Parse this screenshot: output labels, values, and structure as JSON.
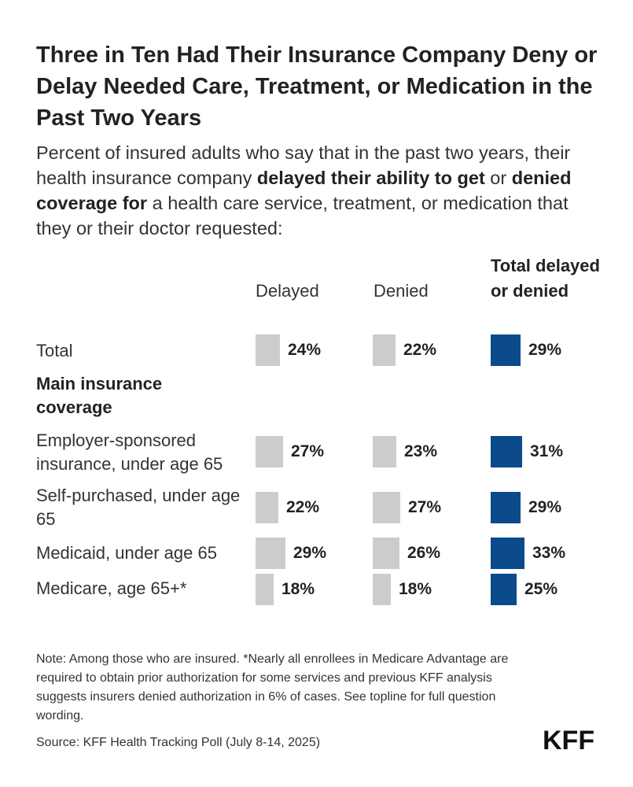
{
  "title": "Three in Ten Had Their Insurance Company Deny or Delay Needed Care, Treatment, or Medication in the Past Two Years",
  "subtitle": {
    "p1": "Percent of insured adults who say that in the past two years, their health insurance company ",
    "b1": "delayed their ability to get",
    "p2": " or ",
    "b2": "denied coverage for",
    "p3": " a health care service, treatment, or medication that they or their doctor requested:"
  },
  "colors": {
    "gray": "#cccccc",
    "navy": "#0b4a8b"
  },
  "chart_data": {
    "type": "bar",
    "orientation": "horizontal",
    "columns": [
      "Delayed",
      "Denied",
      "Total delayed or denied"
    ],
    "group_label": "Main insurance coverage",
    "categories": [
      "Total",
      "Employer-sponsored insurance, under age 65",
      "Self-purchased, under age 65",
      "Medicaid, under age 65",
      "Medicare, age 65+*"
    ],
    "series": [
      {
        "name": "Delayed",
        "values": [
          24,
          27,
          22,
          29,
          18
        ],
        "labels": [
          "24%",
          "27%",
          "22%",
          "29%",
          "18%"
        ]
      },
      {
        "name": "Denied",
        "values": [
          22,
          23,
          27,
          26,
          18
        ],
        "labels": [
          "22%",
          "23%",
          "27%",
          "26%",
          "18%"
        ]
      },
      {
        "name": "Total delayed or denied",
        "values": [
          29,
          31,
          29,
          33,
          25
        ],
        "labels": [
          "29%",
          "31%",
          "29%",
          "33%",
          "25%"
        ]
      }
    ]
  },
  "note": "Note: Among those who are insured. *Nearly all enrollees in Medicare Advantage are required to obtain prior authorization for some services and previous KFF analysis suggests insurers denied authorization in 6% of cases. See topline for full question wording.",
  "source": "Source: KFF Health Tracking Poll (July 8-14, 2025)",
  "logo": "KFF"
}
